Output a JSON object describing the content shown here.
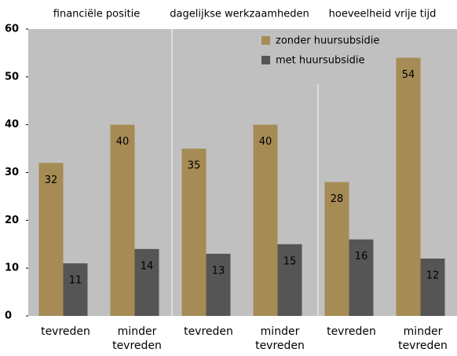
{
  "chart_data": {
    "type": "bar",
    "groups": [
      "financiële positie",
      "dagelijkse werkzaamheden",
      "hoeveelheid vrije tijd"
    ],
    "categories": [
      "tevreden",
      "minder tevreden",
      "tevreden",
      "minder tevreden",
      "tevreden",
      "minder tevreden"
    ],
    "series": [
      {
        "name": "zonder huursubsidie",
        "color": "#a68b55",
        "values": [
          32,
          40,
          35,
          40,
          28,
          54
        ]
      },
      {
        "name": "met huursubsidie",
        "color": "#555555",
        "values": [
          11,
          14,
          13,
          15,
          16,
          12
        ]
      }
    ],
    "ylim": [
      0,
      60
    ],
    "yticks": [
      0,
      10,
      20,
      30,
      40,
      50,
      60
    ],
    "background": "#c0c0c0"
  }
}
